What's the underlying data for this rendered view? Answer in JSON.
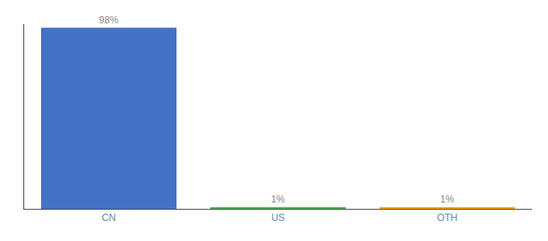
{
  "chart_data": {
    "type": "bar",
    "categories": [
      "CN",
      "US",
      "OTH"
    ],
    "values": [
      98,
      1,
      1
    ],
    "colors": [
      "#4472c4",
      "#4caf50",
      "#ffa500"
    ],
    "data_labels": true,
    "value_labels": [
      "98%",
      "1%",
      "1%"
    ],
    "ylim": [
      0,
      100
    ],
    "tick_labels": "x",
    "grid": false
  }
}
